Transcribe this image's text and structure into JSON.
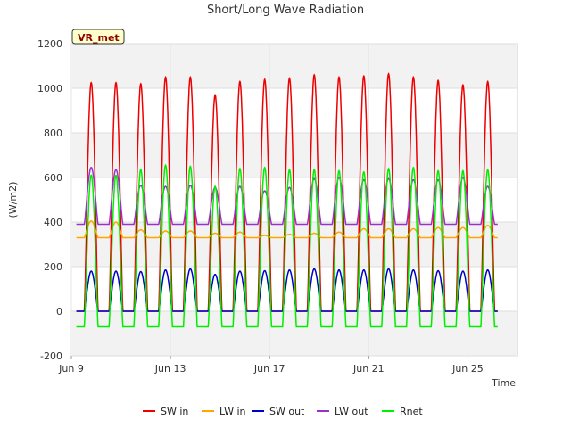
{
  "chart_data": {
    "type": "line",
    "title": "Short/Long Wave Radiation",
    "xlabel": "Time",
    "ylabel": "(W/m2)",
    "badge": "VR_met",
    "ylim": [
      -200,
      1200
    ],
    "yticks": [
      -200,
      0,
      200,
      400,
      600,
      800,
      1000,
      1200
    ],
    "xlim": [
      9.0,
      27.0
    ],
    "xticks": [
      {
        "value": 9,
        "label": "Jun 9"
      },
      {
        "value": 13,
        "label": "Jun 13"
      },
      {
        "value": 17,
        "label": "Jun 17"
      },
      {
        "value": 21,
        "label": "Jun 21"
      },
      {
        "value": 25,
        "label": "Jun 25"
      }
    ],
    "grid": true,
    "legend_position": "bottom",
    "day_centers": [
      9.8,
      10.8,
      11.8,
      12.8,
      13.8,
      14.8,
      15.8,
      16.8,
      17.8,
      18.8,
      19.8,
      20.8,
      21.8,
      22.8,
      23.8,
      24.8,
      25.8
    ],
    "series": [
      {
        "name": "SW in",
        "color": "#ee0000",
        "night_value": 0,
        "daily_peak": [
          1025,
          1025,
          1020,
          1050,
          1050,
          970,
          1030,
          1040,
          1045,
          1060,
          1050,
          1055,
          1065,
          1050,
          1035,
          1015,
          1030
        ]
      },
      {
        "name": "LW in",
        "color": "#ffa500",
        "night_value": 330,
        "daily_peak": [
          405,
          400,
          365,
          360,
          360,
          350,
          355,
          340,
          345,
          350,
          355,
          370,
          370,
          370,
          375,
          375,
          385
        ]
      },
      {
        "name": "SW out",
        "color": "#0000cc",
        "night_value": 0,
        "daily_peak": [
          180,
          180,
          178,
          185,
          190,
          165,
          180,
          182,
          185,
          190,
          185,
          185,
          190,
          185,
          182,
          180,
          185
        ]
      },
      {
        "name": "LW out",
        "color": "#9932cc",
        "night_value": 390,
        "daily_peak": [
          645,
          635,
          565,
          560,
          565,
          555,
          560,
          540,
          555,
          595,
          600,
          590,
          595,
          590,
          590,
          600,
          560
        ]
      },
      {
        "name": "Rnet",
        "color": "#00ee00",
        "night_value": -70,
        "daily_peak": [
          610,
          610,
          635,
          655,
          650,
          560,
          640,
          645,
          635,
          635,
          630,
          625,
          640,
          645,
          630,
          630,
          635
        ]
      }
    ]
  }
}
